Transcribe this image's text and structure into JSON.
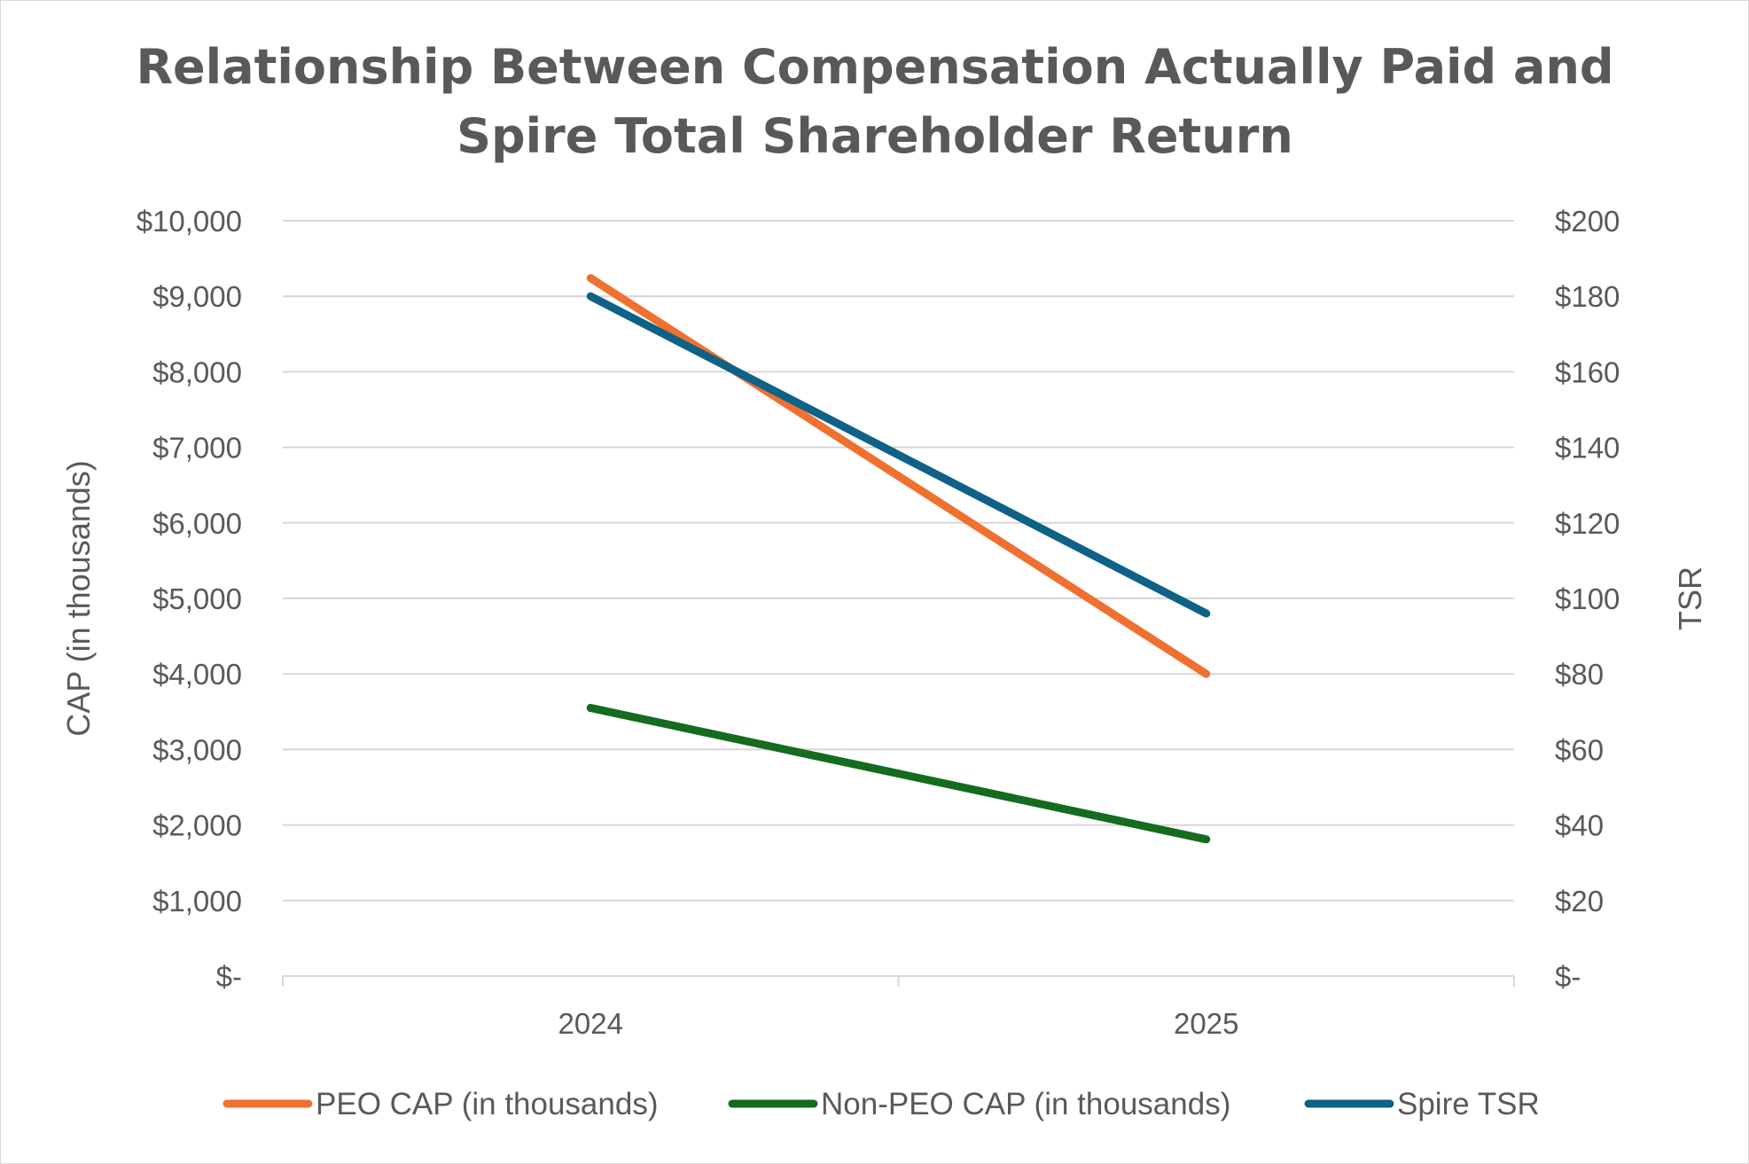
{
  "chart_data": {
    "type": "line",
    "title": [
      "Relationship Between Compensation Actually Paid and",
      "Spire Total Shareholder Return"
    ],
    "categories": [
      "2024",
      "2025"
    ],
    "y_left": {
      "label": "CAP (in thousands)",
      "lim": [
        0,
        10000
      ],
      "ticks": [
        0,
        1000,
        2000,
        3000,
        4000,
        5000,
        6000,
        7000,
        8000,
        9000,
        10000
      ],
      "tick_labels": [
        "$-",
        "$1,000",
        "$2,000",
        "$3,000",
        "$4,000",
        "$5,000",
        "$6,000",
        "$7,000",
        "$8,000",
        "$9,000",
        "$10,000"
      ]
    },
    "y_right": {
      "label": "TSR",
      "lim": [
        0,
        200
      ],
      "ticks": [
        0,
        20,
        40,
        60,
        80,
        100,
        120,
        140,
        160,
        180,
        200
      ],
      "tick_labels": [
        "$-",
        "$20",
        "$40",
        "$60",
        "$80",
        "$100",
        "$120",
        "$140",
        "$160",
        "$180",
        "$200"
      ]
    },
    "grid": true,
    "legend_position": "bottom",
    "series": [
      {
        "name": "PEO CAP (in thousands)",
        "axis": "left",
        "values": [
          9240,
          4000
        ],
        "color": "#f07030"
      },
      {
        "name": "Non-PEO CAP (in thousands)",
        "axis": "left",
        "values": [
          3550,
          1810
        ],
        "color": "#156b1f"
      },
      {
        "name": "Spire TSR",
        "axis": "right",
        "values": [
          180,
          96
        ],
        "color": "#0e6187"
      }
    ]
  }
}
